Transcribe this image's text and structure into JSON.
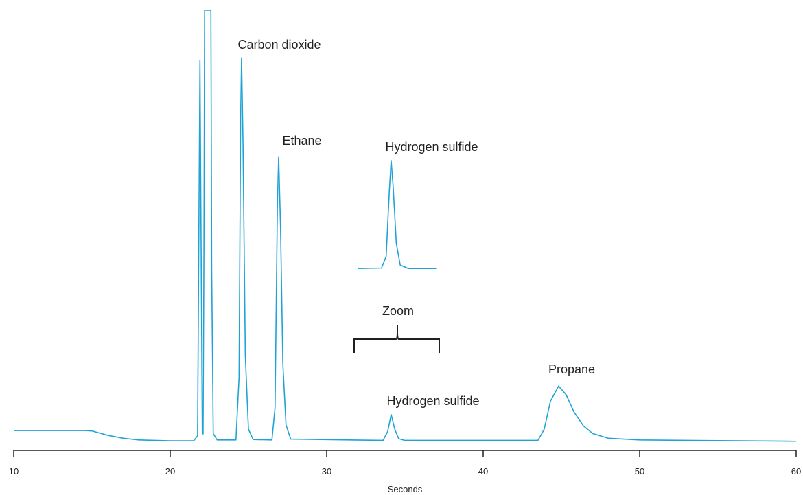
{
  "chart_data": {
    "type": "line",
    "xlabel": "Seconds",
    "xlim": [
      10,
      60
    ],
    "xticks": [
      10,
      20,
      30,
      40,
      50,
      60
    ],
    "ylim": [
      0,
      100
    ],
    "series": [
      {
        "color": "#1fa3d6",
        "x": [
          10,
          14.5,
          15,
          16,
          17,
          18,
          20,
          21.5,
          21.75,
          21.85,
          21.9,
          21.95,
          22.05,
          22.1,
          22.15,
          22.2,
          22.6,
          22.65,
          22.75,
          23.0,
          24.2,
          24.4,
          24.5,
          24.56,
          24.65,
          24.8,
          25.0,
          25.3,
          26.5,
          26.7,
          26.85,
          26.93,
          27.05,
          27.2,
          27.4,
          27.7,
          33.6,
          33.9,
          34.12,
          34.35,
          34.6,
          35,
          43.5,
          43.9,
          44.3,
          44.82,
          45.3,
          45.8,
          46.4,
          47,
          48,
          50,
          60
        ],
        "values": [
          2.7,
          2.7,
          2.6,
          1.6,
          0.9,
          0.5,
          0.3,
          0.3,
          1.5,
          60,
          88.4,
          60,
          2,
          1.9,
          40,
          100,
          100,
          40,
          2,
          0.5,
          0.5,
          15,
          75,
          89,
          70,
          20,
          3,
          0.6,
          0.5,
          8,
          55,
          66.1,
          50,
          18,
          4,
          0.7,
          0.4,
          2.5,
          6.4,
          3,
          0.8,
          0.4,
          0.4,
          3,
          9.5,
          13,
          11,
          7,
          3.8,
          2,
          0.9,
          0.5,
          0.2
        ]
      },
      {
        "color": "#1fa3d6",
        "x": [
          32.0,
          33.5,
          33.8,
          34.0,
          34.12,
          34.25,
          34.45,
          34.7,
          35.2,
          37.0
        ],
        "values": [
          40.2,
          40.3,
          43,
          58,
          65.2,
          59,
          46,
          41,
          40.2,
          40.2
        ]
      }
    ],
    "annotations": [
      "Carbon dioxide",
      "Ethane",
      "Hydrogen sulfide",
      "Zoom",
      "Hydrogen sulfide",
      "Propane"
    ]
  }
}
